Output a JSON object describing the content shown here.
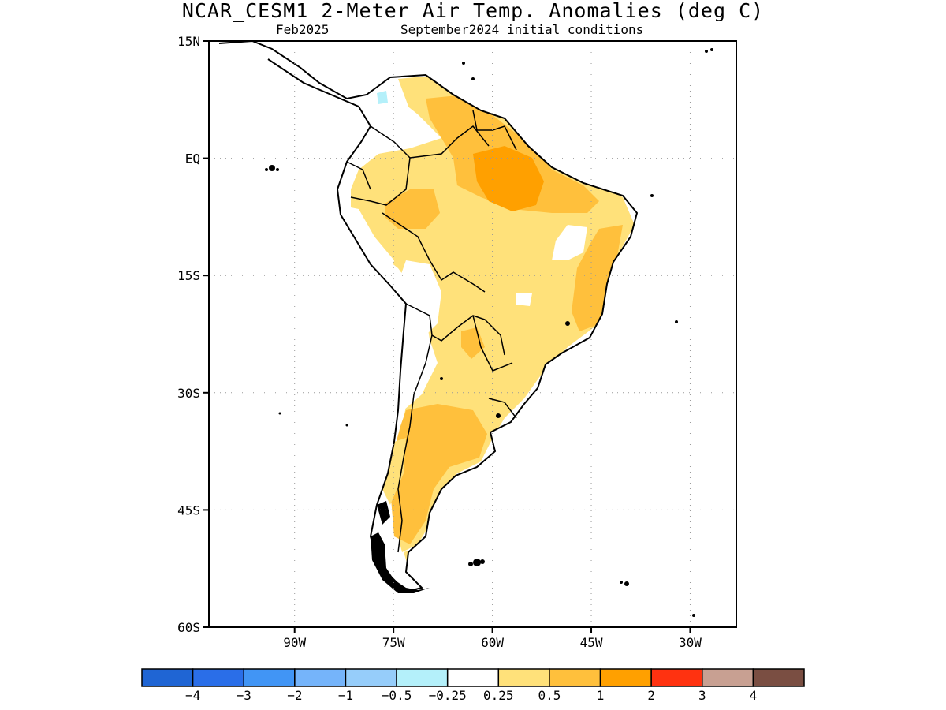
{
  "title": "NCAR_CESM1 2-Meter Air Temp. Anomalies (deg C)",
  "subtitle_left": "Feb2025",
  "subtitle_right": "September2024 initial conditions",
  "map": {
    "region": "South America",
    "projection": "lat-lon",
    "lon_range": [
      -103,
      -23
    ],
    "lat_range": [
      -60,
      15
    ],
    "lat_ticks": [
      {
        "value": 15,
        "label": "15N"
      },
      {
        "value": 0,
        "label": "EQ"
      },
      {
        "value": -15,
        "label": "15S"
      },
      {
        "value": -30,
        "label": "30S"
      },
      {
        "value": -45,
        "label": "45S"
      },
      {
        "value": -60,
        "label": "60S"
      }
    ],
    "lon_ticks": [
      {
        "value": -90,
        "label": "90W"
      },
      {
        "value": -75,
        "label": "75W"
      },
      {
        "value": -60,
        "label": "60W"
      },
      {
        "value": -45,
        "label": "45W"
      },
      {
        "value": -30,
        "label": "30W"
      }
    ],
    "grid": "dotted"
  },
  "colorbar": {
    "colors": [
      "#1f65d4",
      "#2a6ee8",
      "#4195f5",
      "#75b4fa",
      "#96cdfa",
      "#b4f0fa",
      "#ffffff",
      "#ffe17a",
      "#ffc03c",
      "#ffa000",
      "#ff3210",
      "#c8a092",
      "#7a4e42"
    ],
    "labels": [
      "−4",
      "−3",
      "−2",
      "−1",
      "−0.5",
      "−0.25",
      "0.25",
      "0.5",
      "1",
      "2",
      "3",
      "4"
    ]
  },
  "legend_colors": {
    "light_yellow": "#ffe17a",
    "orange_light": "#ffc03c",
    "orange": "#ffa000",
    "light_blue": "#b4f0fa"
  }
}
